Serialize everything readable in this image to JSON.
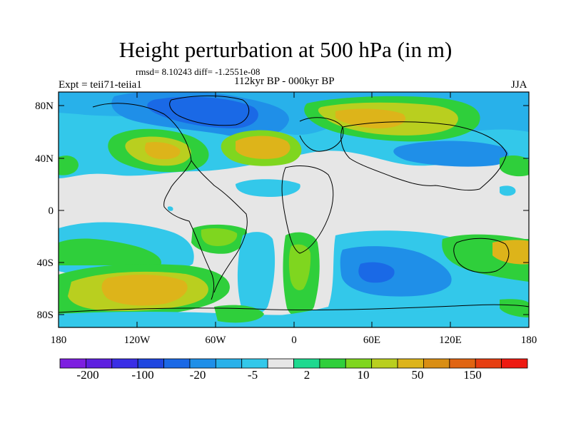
{
  "header": {
    "title": "Height perturbation at 500 hPa (in m)",
    "stats": "rmsd= 8.10243 diff= -1.2551e-08",
    "experiment": "Expt = teii71-teiia1",
    "period": "112kyr BP - 000kyr BP",
    "season": "JJA"
  },
  "map": {
    "projection": "cylindrical-equidistant",
    "lat_labels": [
      "80N",
      "40N",
      "0",
      "40S",
      "80S"
    ],
    "lon_labels": [
      "180",
      "120W",
      "60W",
      "0",
      "60E",
      "120E",
      "180"
    ],
    "coastlines": true,
    "variable": "500 hPa height perturbation",
    "units": "m"
  },
  "colorbar": {
    "colors": [
      "#7d1fe0",
      "#5e20e0",
      "#3a2ee6",
      "#1f46e0",
      "#1a69e6",
      "#1f8fe8",
      "#28b1ea",
      "#33c8ea",
      "#e6e6e6",
      "#1fd98f",
      "#2fcf3b",
      "#7fd61f",
      "#b9cf1f",
      "#ddb41a",
      "#d98e14",
      "#e06412",
      "#e63e12",
      "#ee1a12"
    ],
    "tick_labels": [
      "-200",
      "-100",
      "-20",
      "-5",
      "2",
      "10",
      "50",
      "150"
    ]
  }
}
